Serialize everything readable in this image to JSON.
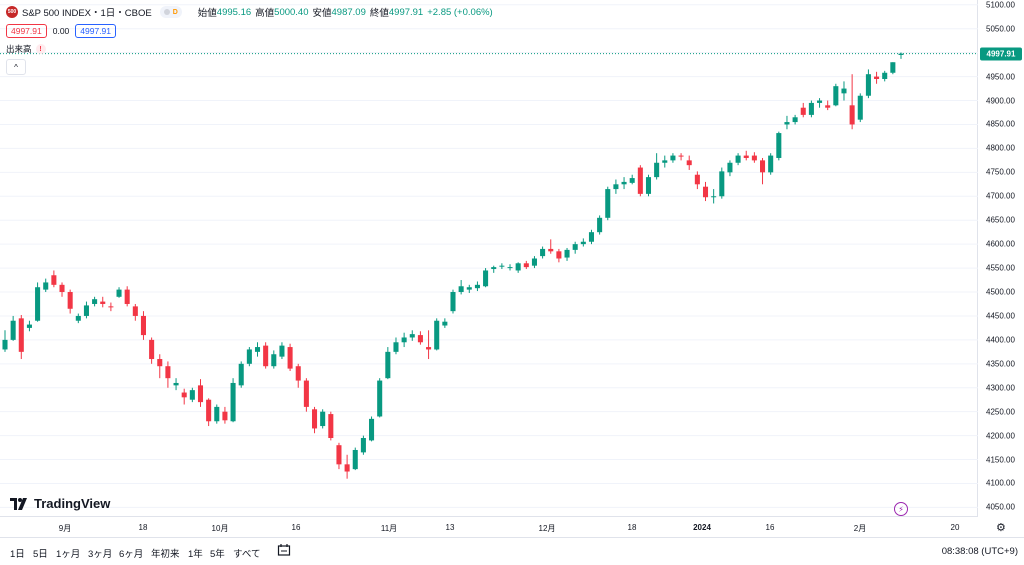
{
  "header": {
    "logo_text": "500",
    "title": "S&P 500 INDEX・1日・CBOE",
    "badge_d": "D",
    "open_label": "始値",
    "open_value": "4995.16",
    "high_label": "高値",
    "high_value": "5000.40",
    "low_label": "安値",
    "low_value": "4987.09",
    "close_label": "終値",
    "close_value": "4997.91",
    "change": "+2.85 (+0.06%)"
  },
  "quote": {
    "bid": "4997.91",
    "spread": "0.00",
    "ask": "4997.91"
  },
  "volume": {
    "label": "出来高",
    "warning": "!"
  },
  "collapse_icon": "^",
  "brand": "TradingView",
  "price_axis": {
    "ticks": [
      "5100.00",
      "5050.00",
      "5000.00",
      "4950.00",
      "4900.00",
      "4850.00",
      "4800.00",
      "4750.00",
      "4700.00",
      "4650.00",
      "4600.00",
      "4550.00",
      "4500.00",
      "4450.00",
      "4400.00",
      "4350.00",
      "4300.00",
      "4250.00",
      "4200.00",
      "4150.00",
      "4100.00",
      "4050.00"
    ],
    "last_price": "4997.91"
  },
  "time_axis": {
    "labels": [
      "9月",
      "18",
      "10月",
      "16",
      "11月",
      "13",
      "12月",
      "18",
      "2024",
      "16",
      "2月",
      "20"
    ]
  },
  "ranges": [
    "1日",
    "5日",
    "1ヶ月",
    "3ヶ月",
    "6ヶ月",
    "年初来",
    "1年",
    "5年",
    "すべて"
  ],
  "clock": "08:38:08 (UTC+9)",
  "colors": {
    "up": "#089981",
    "down": "#f23645"
  },
  "chart_data": {
    "type": "candlestick",
    "ylim": [
      4030,
      5110
    ],
    "candles": [
      [
        4380,
        4420,
        4375,
        4400
      ],
      [
        4400,
        4450,
        4398,
        4440
      ],
      [
        4445,
        4452,
        4360,
        4375
      ],
      [
        4425,
        4440,
        4418,
        4432
      ],
      [
        4440,
        4520,
        4438,
        4510
      ],
      [
        4505,
        4528,
        4500,
        4520
      ],
      [
        4535,
        4545,
        4510,
        4515
      ],
      [
        4515,
        4520,
        4490,
        4500
      ],
      [
        4500,
        4505,
        4455,
        4465
      ],
      [
        4440,
        4455,
        4435,
        4450
      ],
      [
        4450,
        4480,
        4445,
        4472
      ],
      [
        4475,
        4490,
        4470,
        4485
      ],
      [
        4480,
        4490,
        4468,
        4475
      ],
      [
        4470,
        4478,
        4460,
        4468
      ],
      [
        4490,
        4510,
        4488,
        4505
      ],
      [
        4505,
        4512,
        4470,
        4475
      ],
      [
        4470,
        4475,
        4440,
        4450
      ],
      [
        4450,
        4460,
        4400,
        4410
      ],
      [
        4400,
        4405,
        4350,
        4360
      ],
      [
        4360,
        4370,
        4320,
        4345
      ],
      [
        4345,
        4355,
        4300,
        4320
      ],
      [
        4305,
        4320,
        4295,
        4310
      ],
      [
        4290,
        4298,
        4265,
        4280
      ],
      [
        4275,
        4300,
        4270,
        4295
      ],
      [
        4305,
        4318,
        4260,
        4270
      ],
      [
        4275,
        4278,
        4220,
        4230
      ],
      [
        4230,
        4265,
        4225,
        4260
      ],
      [
        4250,
        4260,
        4225,
        4232
      ],
      [
        4230,
        4320,
        4228,
        4310
      ],
      [
        4305,
        4355,
        4300,
        4350
      ],
      [
        4350,
        4385,
        4345,
        4380
      ],
      [
        4375,
        4395,
        4365,
        4385
      ],
      [
        4388,
        4395,
        4340,
        4345
      ],
      [
        4345,
        4378,
        4340,
        4370
      ],
      [
        4365,
        4395,
        4360,
        4388
      ],
      [
        4385,
        4392,
        4335,
        4340
      ],
      [
        4345,
        4350,
        4300,
        4315
      ],
      [
        4315,
        4320,
        4250,
        4260
      ],
      [
        4255,
        4260,
        4205,
        4215
      ],
      [
        4220,
        4255,
        4215,
        4250
      ],
      [
        4245,
        4250,
        4190,
        4195
      ],
      [
        4180,
        4185,
        4130,
        4140
      ],
      [
        4140,
        4160,
        4110,
        4125
      ],
      [
        4130,
        4175,
        4128,
        4170
      ],
      [
        4165,
        4200,
        4160,
        4195
      ],
      [
        4190,
        4240,
        4188,
        4235
      ],
      [
        4240,
        4320,
        4238,
        4315
      ],
      [
        4320,
        4385,
        4318,
        4375
      ],
      [
        4375,
        4405,
        4370,
        4395
      ],
      [
        4395,
        4415,
        4385,
        4405
      ],
      [
        4405,
        4420,
        4398,
        4412
      ],
      [
        4410,
        4418,
        4390,
        4395
      ],
      [
        4385,
        4420,
        4360,
        4380
      ],
      [
        4380,
        4445,
        4378,
        4440
      ],
      [
        4430,
        4445,
        4425,
        4438
      ],
      [
        4460,
        4505,
        4455,
        4500
      ],
      [
        4500,
        4525,
        4495,
        4512
      ],
      [
        4505,
        4515,
        4498,
        4510
      ],
      [
        4508,
        4522,
        4502,
        4515
      ],
      [
        4512,
        4550,
        4510,
        4545
      ],
      [
        4548,
        4555,
        4540,
        4552
      ],
      [
        4555,
        4560,
        4548,
        4555
      ],
      [
        4550,
        4558,
        4545,
        4552
      ],
      [
        4545,
        4562,
        4540,
        4560
      ],
      [
        4560,
        4565,
        4548,
        4552
      ],
      [
        4555,
        4575,
        4550,
        4570
      ],
      [
        4575,
        4595,
        4570,
        4590
      ],
      [
        4590,
        4610,
        4580,
        4585
      ],
      [
        4585,
        4590,
        4562,
        4570
      ],
      [
        4572,
        4592,
        4565,
        4588
      ],
      [
        4588,
        4605,
        4580,
        4600
      ],
      [
        4600,
        4612,
        4595,
        4605
      ],
      [
        4605,
        4630,
        4600,
        4625
      ],
      [
        4625,
        4660,
        4620,
        4655
      ],
      [
        4655,
        4720,
        4650,
        4715
      ],
      [
        4715,
        4735,
        4705,
        4725
      ],
      [
        4725,
        4740,
        4715,
        4730
      ],
      [
        4728,
        4745,
        4725,
        4738
      ],
      [
        4760,
        4765,
        4700,
        4705
      ],
      [
        4705,
        4745,
        4700,
        4740
      ],
      [
        4740,
        4790,
        4735,
        4770
      ],
      [
        4770,
        4785,
        4760,
        4775
      ],
      [
        4775,
        4790,
        4770,
        4785
      ],
      [
        4785,
        4790,
        4775,
        4783
      ],
      [
        4775,
        4785,
        4755,
        4765
      ],
      [
        4745,
        4752,
        4715,
        4725
      ],
      [
        4720,
        4730,
        4690,
        4698
      ],
      [
        4700,
        4715,
        4685,
        4700
      ],
      [
        4700,
        4760,
        4695,
        4752
      ],
      [
        4750,
        4775,
        4742,
        4770
      ],
      [
        4770,
        4790,
        4765,
        4785
      ],
      [
        4785,
        4795,
        4775,
        4780
      ],
      [
        4785,
        4792,
        4770,
        4775
      ],
      [
        4775,
        4780,
        4725,
        4750
      ],
      [
        4750,
        4790,
        4745,
        4785
      ],
      [
        4780,
        4835,
        4775,
        4832
      ],
      [
        4850,
        4868,
        4840,
        4855
      ],
      [
        4855,
        4870,
        4850,
        4865
      ],
      [
        4885,
        4895,
        4865,
        4870
      ],
      [
        4870,
        4900,
        4865,
        4895
      ],
      [
        4895,
        4905,
        4885,
        4900
      ],
      [
        4890,
        4900,
        4880,
        4885
      ],
      [
        4890,
        4935,
        4888,
        4930
      ],
      [
        4915,
        4940,
        4900,
        4925
      ],
      [
        4890,
        4955,
        4840,
        4850
      ],
      [
        4860,
        4915,
        4855,
        4910
      ],
      [
        4910,
        4965,
        4905,
        4955
      ],
      [
        4950,
        4960,
        4935,
        4945
      ],
      [
        4945,
        4962,
        4940,
        4958
      ],
      [
        4958,
        4980,
        4955,
        4980
      ],
      [
        4995.16,
        5000.4,
        4987.09,
        4997.91
      ]
    ]
  }
}
